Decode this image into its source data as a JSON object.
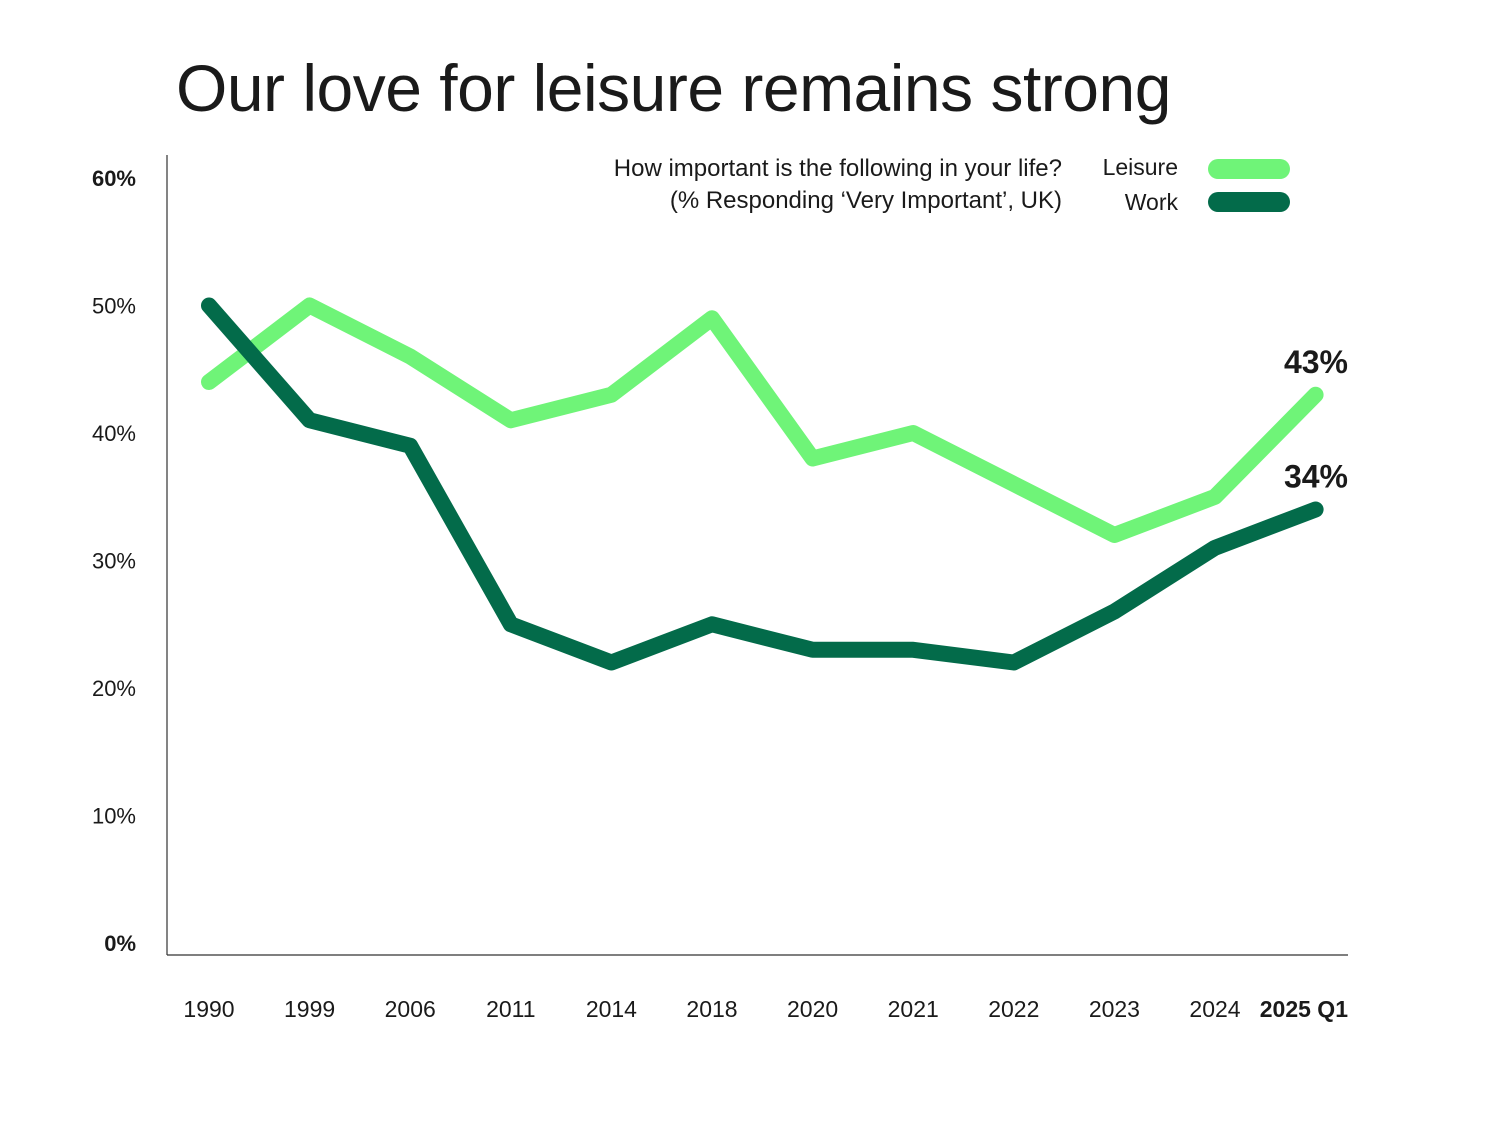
{
  "title": "Our love for leisure remains strong",
  "chart_data": {
    "type": "line",
    "title": "Our love for leisure remains strong",
    "subtitle_lines": [
      "How important is the following in your life?",
      "(% Responding ‘Very Important’, UK)"
    ],
    "categories": [
      "1990",
      "1999",
      "2006",
      "2011",
      "2014",
      "2018",
      "2020",
      "2021",
      "2022",
      "2023",
      "2024",
      "2025 Q1"
    ],
    "bold_categories": [
      "2025 Q1"
    ],
    "yticks": [
      0,
      10,
      20,
      30,
      40,
      50,
      60
    ],
    "ytick_labels": [
      "0%",
      "10%",
      "20%",
      "30%",
      "40%",
      "50%",
      "60%"
    ],
    "bold_yticks": [
      "0%",
      "60%"
    ],
    "ylim": [
      0,
      60
    ],
    "grid": false,
    "legend_position": "top-right",
    "series": [
      {
        "name": "Leisure",
        "color": "#6ff478",
        "values": [
          44,
          50,
          46,
          41,
          43,
          49,
          38,
          40,
          36,
          32,
          35,
          43
        ],
        "end_label": "43%"
      },
      {
        "name": "Work",
        "color": "#036b4a",
        "values": [
          50,
          41,
          39,
          25,
          22,
          25,
          23,
          23,
          22,
          26,
          31,
          34
        ],
        "end_label": "34%"
      }
    ]
  }
}
